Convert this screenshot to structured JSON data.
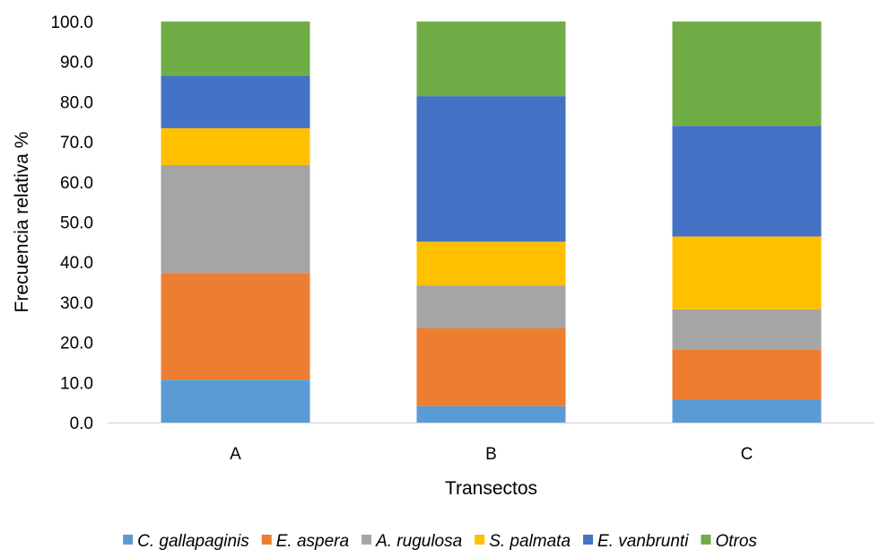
{
  "chart_data": {
    "type": "bar",
    "stacked": true,
    "title": "",
    "xlabel": "Transectos",
    "ylabel": "Frecuencia relativa %",
    "ylim": [
      0,
      100
    ],
    "yticks": [
      "0.0",
      "10.0",
      "20.0",
      "30.0",
      "40.0",
      "50.0",
      "60.0",
      "70.0",
      "80.0",
      "90.0",
      "100.0"
    ],
    "categories": [
      "A",
      "B",
      "C"
    ],
    "series": [
      {
        "name": "C. gallapaginis",
        "color": "#5B9BD5",
        "values": [
          10.7,
          4.1,
          5.8
        ]
      },
      {
        "name": "E. aspera",
        "color": "#ED7D31",
        "values": [
          26.6,
          19.4,
          12.4
        ]
      },
      {
        "name": "A. rugulosa",
        "color": "#A5A5A5",
        "values": [
          26.9,
          10.7,
          10.0
        ]
      },
      {
        "name": "S. palmata",
        "color": "#FFC000",
        "values": [
          9.2,
          10.9,
          18.2
        ]
      },
      {
        "name": "E. vanbrunti",
        "color": "#4472C4",
        "values": [
          13.1,
          36.3,
          27.6
        ]
      },
      {
        "name": "Otros",
        "color": "#70AD47",
        "values": [
          13.5,
          18.6,
          26.0
        ]
      }
    ],
    "grid": false,
    "legend": "bottom"
  }
}
